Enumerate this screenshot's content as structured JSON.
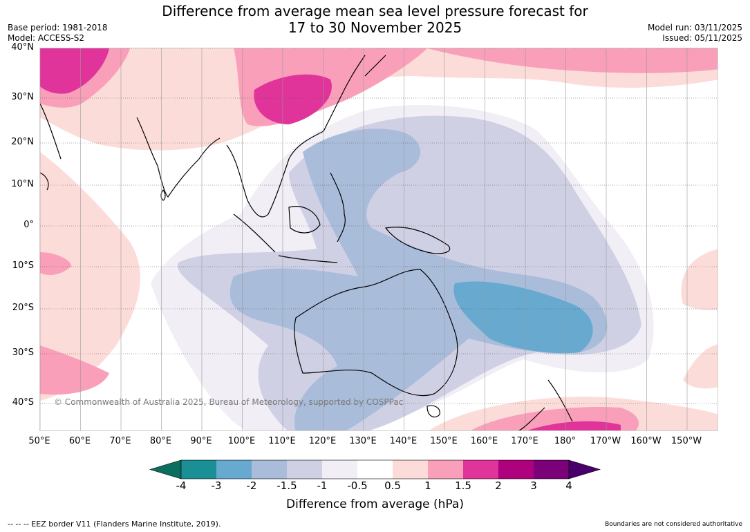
{
  "title": {
    "line1": "Difference from average mean sea level pressure forecast for",
    "line2": "17 to 30 November 2025"
  },
  "meta": {
    "base_period": "Base period: 1981-2018",
    "model": "Model: ACCESS-S2",
    "model_run": "Model run: 03/11/2025",
    "issued": "Issued: 05/11/2025"
  },
  "map": {
    "latitude_labels": [
      "40°N",
      "30°N",
      "20°N",
      "10°N",
      "0°",
      "10°S",
      "20°S",
      "30°S",
      "40°S"
    ],
    "longitude_labels": [
      "50°E",
      "60°E",
      "70°E",
      "80°E",
      "90°E",
      "100°E",
      "110°E",
      "120°E",
      "130°E",
      "140°E",
      "150°E",
      "160°E",
      "170°E",
      "180°",
      "170°W",
      "160°W",
      "150°W"
    ],
    "copyright": "© Commonwealth of Australia 2025, Bureau of Meteorology, supported by COSPPac"
  },
  "colorbar": {
    "ticks": [
      "-4",
      "-3",
      "-2",
      "-1.5",
      "-1",
      "-0.5",
      "0.5",
      "1",
      "1.5",
      "2",
      "3",
      "4"
    ],
    "label": "Difference from average (hPa)",
    "colors": {
      "below_-4": "#0b6e5e",
      "-4_-3": "#1b8f96",
      "-3_-2": "#68a9d0",
      "-2_-1.5": "#a9bcda",
      "-1.5_-1": "#cfd0e4",
      "-1_-0.5": "#f1eef6",
      "-0.5_0.5": "#ffffff",
      "0.5_1": "#fcdcd8",
      "1_1.5": "#f99fba",
      "1.5_2": "#e0349b",
      "2_3": "#ae017e",
      "3_4": "#7a0177",
      "above_4": "#4a006a"
    }
  },
  "footer": {
    "eez": "--  --  -- EEZ border V11 (Flanders Marine Institute, 2019).",
    "disclaimer": "Boundaries are not considered authoritative"
  }
}
